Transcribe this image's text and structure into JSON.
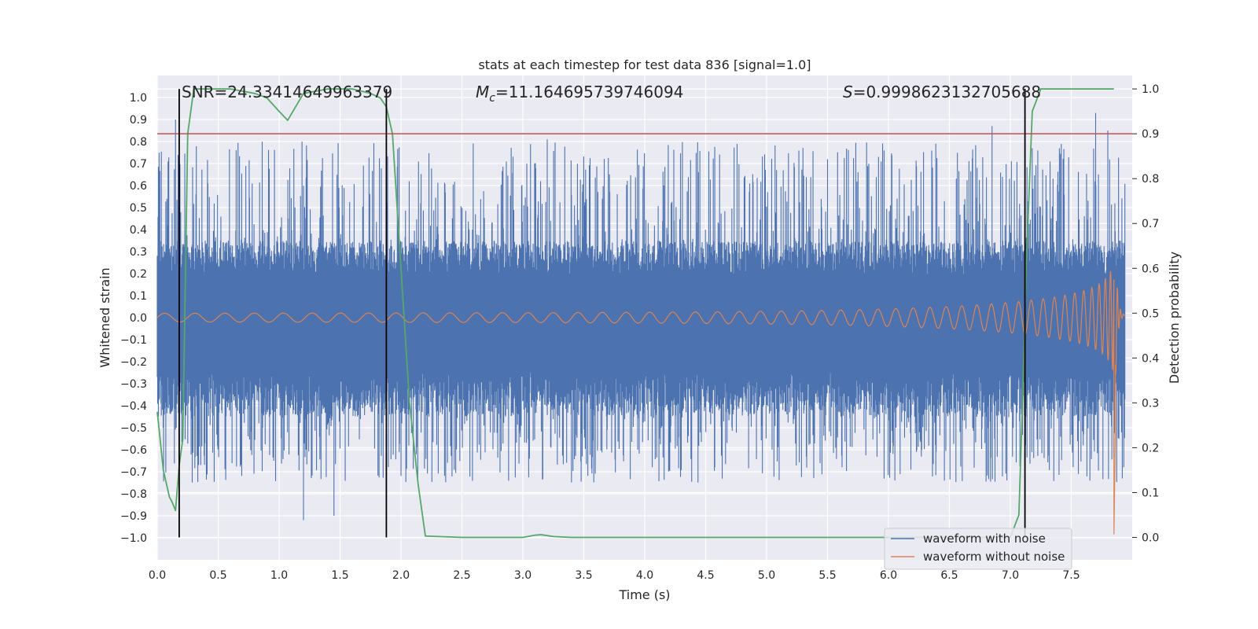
{
  "chart_data": {
    "type": "line",
    "title": "stats at each timestep for test data 836 [signal=1.0]",
    "xlabel": "Time (s)",
    "ylabel": "Whitened strain",
    "y2label": "Detection probability",
    "xlim": [
      0.0,
      8.0
    ],
    "ylim": [
      -1.1,
      1.1
    ],
    "y2lim": [
      -0.05,
      1.03
    ],
    "xticks": [
      "0.0",
      "0.5",
      "1.0",
      "1.5",
      "2.0",
      "2.5",
      "3.0",
      "3.5",
      "4.0",
      "4.5",
      "5.0",
      "5.5",
      "6.0",
      "6.5",
      "7.0",
      "7.5"
    ],
    "yticks": [
      "1.0",
      "0.9",
      "0.8",
      "0.7",
      "0.6",
      "0.5",
      "0.4",
      "0.3",
      "0.2",
      "0.1",
      "0.0",
      "−0.1",
      "−0.2",
      "−0.3",
      "−0.4",
      "−0.5",
      "−0.6",
      "−0.7",
      "−0.8",
      "−0.9",
      "−1.0"
    ],
    "y2ticks": [
      "1.0",
      "0.9",
      "0.8",
      "0.7",
      "0.6",
      "0.5",
      "0.4",
      "0.3",
      "0.2",
      "0.1",
      "0.0"
    ],
    "annotations": {
      "snr": "SNR=24.33414649963379",
      "mc_symbol": "M",
      "mc_sub": "c",
      "mc_value": "=11.164695739746094",
      "s_symbol": "S",
      "s_value": "=0.9998623132705688"
    },
    "threshold": {
      "y2": 0.9
    },
    "event_lines_x": [
      0.18,
      1.88,
      7.12
    ],
    "series": [
      {
        "name": "waveform with noise",
        "color": "#4c72b0",
        "envelope": {
          "core_upper": 0.35,
          "core_lower": -0.45,
          "spike_max": 0.95,
          "spike_min": -0.95
        },
        "notable_peaks": [
          [
            0.15,
            0.9
          ],
          [
            1.2,
            -0.92
          ],
          [
            1.45,
            -0.9
          ],
          [
            3.2,
            0.81
          ],
          [
            6.85,
            0.87
          ],
          [
            7.7,
            0.93
          ],
          [
            7.8,
            0.85
          ]
        ]
      },
      {
        "name": "waveform without noise",
        "color": "#dd8452",
        "chirp": {
          "start_amp": 0.02,
          "peak_amp": 0.68,
          "merger_t": 7.85,
          "f_start": 4.0,
          "f_end": 40.0,
          "after_merger": 0.01
        }
      },
      {
        "name": "detection probability",
        "color": "#55a868",
        "axis": "y2",
        "x": [
          0.0,
          0.05,
          0.1,
          0.12,
          0.15,
          0.18,
          0.21,
          0.25,
          0.3,
          0.4,
          0.6,
          0.8,
          0.9,
          1.0,
          1.07,
          1.2,
          1.4,
          1.6,
          1.75,
          1.83,
          1.88,
          1.93,
          2.0,
          2.07,
          2.14,
          2.2,
          2.5,
          2.9,
          3.0,
          3.1,
          3.15,
          3.25,
          3.4,
          4.0,
          5.0,
          6.0,
          6.8,
          7.0,
          7.07,
          7.1,
          7.13,
          7.18,
          7.25,
          7.5,
          7.85
        ],
        "values": [
          0.28,
          0.15,
          0.09,
          0.08,
          0.06,
          0.16,
          0.22,
          0.9,
          1.0,
          1.0,
          1.0,
          0.99,
          0.98,
          0.95,
          0.93,
          0.99,
          1.0,
          1.0,
          0.99,
          0.98,
          0.96,
          0.9,
          0.6,
          0.3,
          0.12,
          0.003,
          0.0,
          0.0,
          0.0,
          0.005,
          0.006,
          0.002,
          0.0,
          0.0,
          0.0,
          0.0,
          0.0,
          0.0,
          0.05,
          0.3,
          0.6,
          0.95,
          1.0,
          1.0,
          1.0
        ]
      }
    ],
    "legend": {
      "position": "lower right",
      "entries": [
        {
          "label": "waveform with noise",
          "color": "#4c72b0"
        },
        {
          "label": "waveform without noise",
          "color": "#dd8452"
        }
      ]
    }
  }
}
